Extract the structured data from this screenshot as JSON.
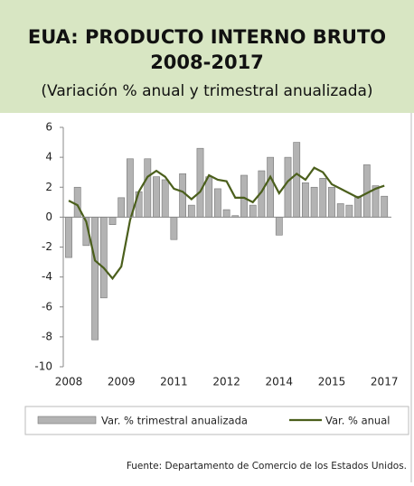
{
  "chart_data": {
    "type": "combo",
    "title": "EUA: PRODUCTO INTERNO BRUTO",
    "title_line2": "2008-2017",
    "subtitle": "(Variación % anual y trimestral anualizada)",
    "source": "Fuente:  Departamento de Comercio de los Estados Unidos.",
    "categories": [
      "2008",
      null,
      null,
      null,
      null,
      null,
      "2009",
      null,
      null,
      null,
      null,
      null,
      "2011",
      null,
      null,
      null,
      null,
      null,
      "2012",
      null,
      null,
      null,
      null,
      null,
      "2014",
      null,
      null,
      null,
      null,
      null,
      "2015",
      null,
      null,
      null,
      null,
      null,
      "2017"
    ],
    "series": [
      {
        "name": "Var. % trimestral anualizada",
        "type": "bar",
        "color": "#b3b3b3",
        "values": [
          -2.7,
          2.0,
          -1.9,
          -8.2,
          -5.4,
          -0.5,
          1.3,
          3.9,
          1.7,
          3.9,
          2.7,
          2.5,
          -1.5,
          2.9,
          0.8,
          4.6,
          2.7,
          1.9,
          0.5,
          0.1,
          2.8,
          0.8,
          3.1,
          4.0,
          -1.2,
          4.0,
          5.0,
          2.3,
          2.0,
          2.6,
          2.0,
          0.9,
          0.8,
          1.4,
          3.5,
          2.1,
          1.4
        ]
      },
      {
        "name": "Var. % anual",
        "type": "line",
        "color": "#4b5f1c",
        "values": [
          1.1,
          0.8,
          -0.3,
          -2.9,
          -3.4,
          -4.1,
          -3.3,
          -0.2,
          1.7,
          2.7,
          3.1,
          2.7,
          1.9,
          1.7,
          1.2,
          1.7,
          2.8,
          2.5,
          2.4,
          1.3,
          1.3,
          1.0,
          1.7,
          2.7,
          1.6,
          2.4,
          2.9,
          2.5,
          3.3,
          3.0,
          2.2,
          1.9,
          1.6,
          1.3,
          1.6,
          1.9,
          2.1
        ]
      }
    ],
    "ylim": [
      -10,
      6
    ],
    "yticks": [
      -10,
      -8,
      -6,
      -4,
      -2,
      0,
      2,
      4,
      6
    ]
  }
}
